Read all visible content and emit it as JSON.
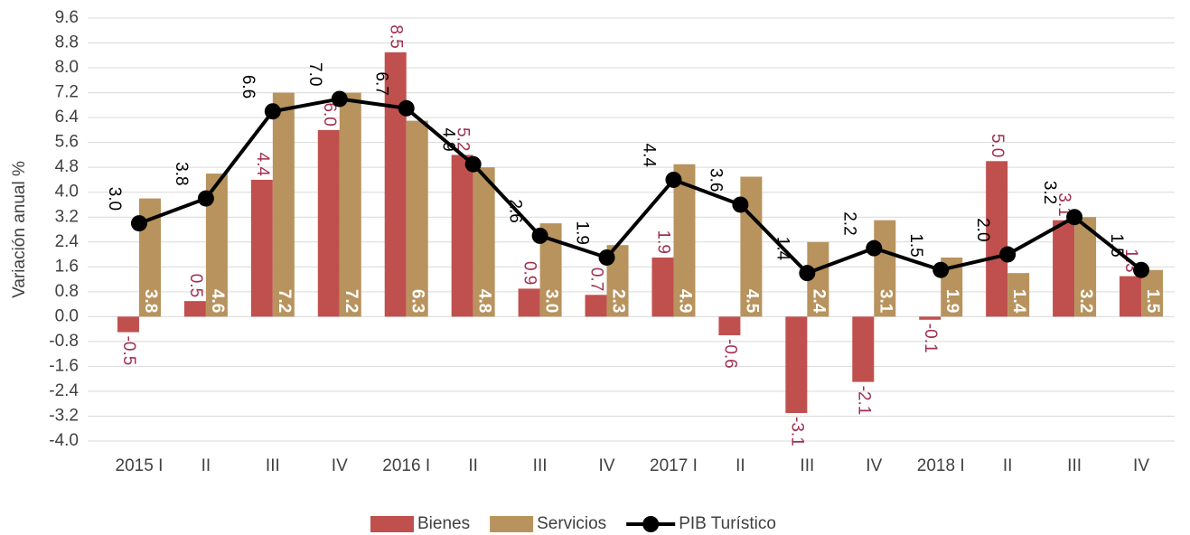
{
  "chart_data": {
    "type": "bar_line",
    "y_label": "Variación anual %",
    "categories": [
      "2015 I",
      "II",
      "III",
      "IV",
      "2016 I",
      "II",
      "III",
      "IV",
      "2017 I",
      "II",
      "III",
      "IV",
      "2018 I",
      "II",
      "III",
      "IV"
    ],
    "series": [
      {
        "name": "Bienes",
        "type": "bar",
        "color": "#c0504d",
        "label_color": "#a0304f",
        "values": [
          -0.5,
          0.5,
          4.4,
          6.0,
          8.5,
          5.2,
          0.9,
          0.7,
          1.9,
          -0.6,
          -3.1,
          -2.1,
          -0.1,
          5.0,
          3.1,
          1.3
        ],
        "value_labels": [
          "-0.5",
          "0.5",
          "4.4",
          "6.0",
          "8.5",
          "5.2",
          "0.9",
          "0.7",
          "1.9",
          "-0.6",
          "-3.1",
          "-2.1",
          "-0.1",
          "5.0",
          "3.1",
          "1.3"
        ]
      },
      {
        "name": "Servicios",
        "type": "bar",
        "color": "#b8935e",
        "label_color": "#ffffff",
        "values": [
          3.8,
          4.6,
          7.2,
          7.2,
          6.3,
          4.8,
          3.0,
          2.3,
          4.9,
          4.5,
          2.4,
          3.1,
          1.9,
          1.4,
          3.2,
          1.5
        ],
        "value_labels": [
          "3.8",
          "4.6",
          "7.2",
          "7.2",
          "6.3",
          "4.8",
          "3.0",
          "2.3",
          "4.9",
          "4.5",
          "2.4",
          "3.1",
          "1.9",
          "1.4",
          "3.2",
          "1.5"
        ]
      },
      {
        "name": "PIB Turístico",
        "type": "line",
        "color": "#000000",
        "label_color": "#000000",
        "values": [
          3.0,
          3.8,
          6.6,
          7.0,
          6.7,
          4.9,
          2.6,
          1.9,
          4.4,
          3.6,
          1.4,
          2.2,
          1.5,
          2.0,
          3.2,
          1.5
        ],
        "value_labels": [
          "3.0",
          "3.8",
          "6.6",
          "7.0",
          "6.7",
          "4.9",
          "2.6",
          "1.9",
          "4.4",
          "3.6",
          "1.4",
          "2.2",
          "1.5",
          "2.0",
          "3.2",
          "1.5"
        ]
      }
    ],
    "ylim": [
      -4.0,
      9.6
    ],
    "yticks": [
      {
        "value": -4.0,
        "label": "-4.0"
      },
      -3.2,
      -2.4,
      -1.6,
      -0.8,
      {
        "value": 0.0,
        "label": "0.0"
      },
      0.8,
      1.6,
      2.4,
      3.2,
      {
        "value": 4.0,
        "label": "4.0"
      },
      4.8,
      5.6,
      6.4,
      7.2,
      {
        "value": 8.0,
        "label": "8.0"
      },
      8.8,
      9.6
    ],
    "grid": true,
    "legend": "bottom"
  }
}
